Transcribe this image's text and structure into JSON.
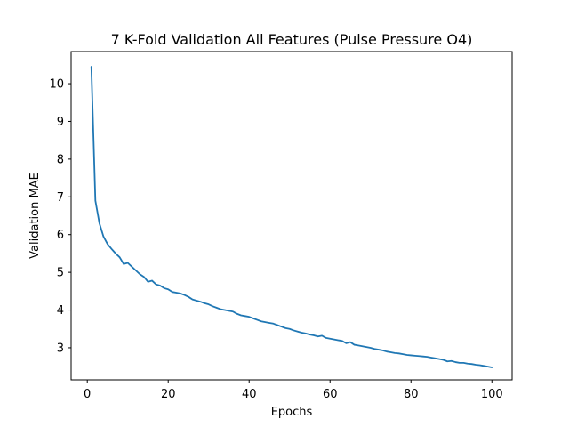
{
  "chart_data": {
    "type": "line",
    "title": "7 K-Fold Validation All Features (Pulse Pressure O4)",
    "xlabel": "Epochs",
    "ylabel": "Validation MAE",
    "xlim": [
      -4,
      105
    ],
    "ylim": [
      2.15,
      10.85
    ],
    "xticks": [
      0,
      20,
      40,
      60,
      80,
      100
    ],
    "yticks": [
      3,
      4,
      5,
      6,
      7,
      8,
      9,
      10
    ],
    "grid": false,
    "legend": "none",
    "series": [
      {
        "color": "#1f77b4",
        "x": [
          1,
          2,
          3,
          4,
          5,
          6,
          7,
          8,
          9,
          10,
          11,
          12,
          13,
          14,
          15,
          16,
          17,
          18,
          19,
          20,
          21,
          22,
          23,
          24,
          25,
          26,
          27,
          28,
          29,
          30,
          31,
          32,
          33,
          34,
          35,
          36,
          37,
          38,
          39,
          40,
          41,
          42,
          43,
          44,
          45,
          46,
          47,
          48,
          49,
          50,
          51,
          52,
          53,
          54,
          55,
          56,
          57,
          58,
          59,
          60,
          61,
          62,
          63,
          64,
          65,
          66,
          67,
          68,
          69,
          70,
          71,
          72,
          73,
          74,
          75,
          76,
          77,
          78,
          79,
          80,
          81,
          82,
          83,
          84,
          85,
          86,
          87,
          88,
          89,
          90,
          91,
          92,
          93,
          94,
          95,
          96,
          97,
          98,
          99,
          100
        ],
        "y": [
          10.45,
          6.9,
          6.3,
          5.95,
          5.75,
          5.62,
          5.5,
          5.4,
          5.22,
          5.25,
          5.15,
          5.05,
          4.95,
          4.88,
          4.75,
          4.78,
          4.68,
          4.65,
          4.58,
          4.55,
          4.48,
          4.46,
          4.44,
          4.4,
          4.35,
          4.28,
          4.25,
          4.22,
          4.18,
          4.15,
          4.1,
          4.06,
          4.02,
          4.0,
          3.98,
          3.96,
          3.9,
          3.86,
          3.84,
          3.82,
          3.78,
          3.74,
          3.7,
          3.68,
          3.66,
          3.64,
          3.6,
          3.56,
          3.52,
          3.5,
          3.46,
          3.43,
          3.4,
          3.38,
          3.35,
          3.33,
          3.3,
          3.32,
          3.26,
          3.24,
          3.22,
          3.2,
          3.18,
          3.12,
          3.15,
          3.08,
          3.06,
          3.04,
          3.02,
          3.0,
          2.97,
          2.95,
          2.93,
          2.9,
          2.88,
          2.86,
          2.85,
          2.83,
          2.81,
          2.8,
          2.79,
          2.78,
          2.77,
          2.76,
          2.74,
          2.72,
          2.7,
          2.68,
          2.64,
          2.65,
          2.62,
          2.6,
          2.6,
          2.58,
          2.57,
          2.55,
          2.54,
          2.52,
          2.5,
          2.48
        ]
      }
    ]
  }
}
